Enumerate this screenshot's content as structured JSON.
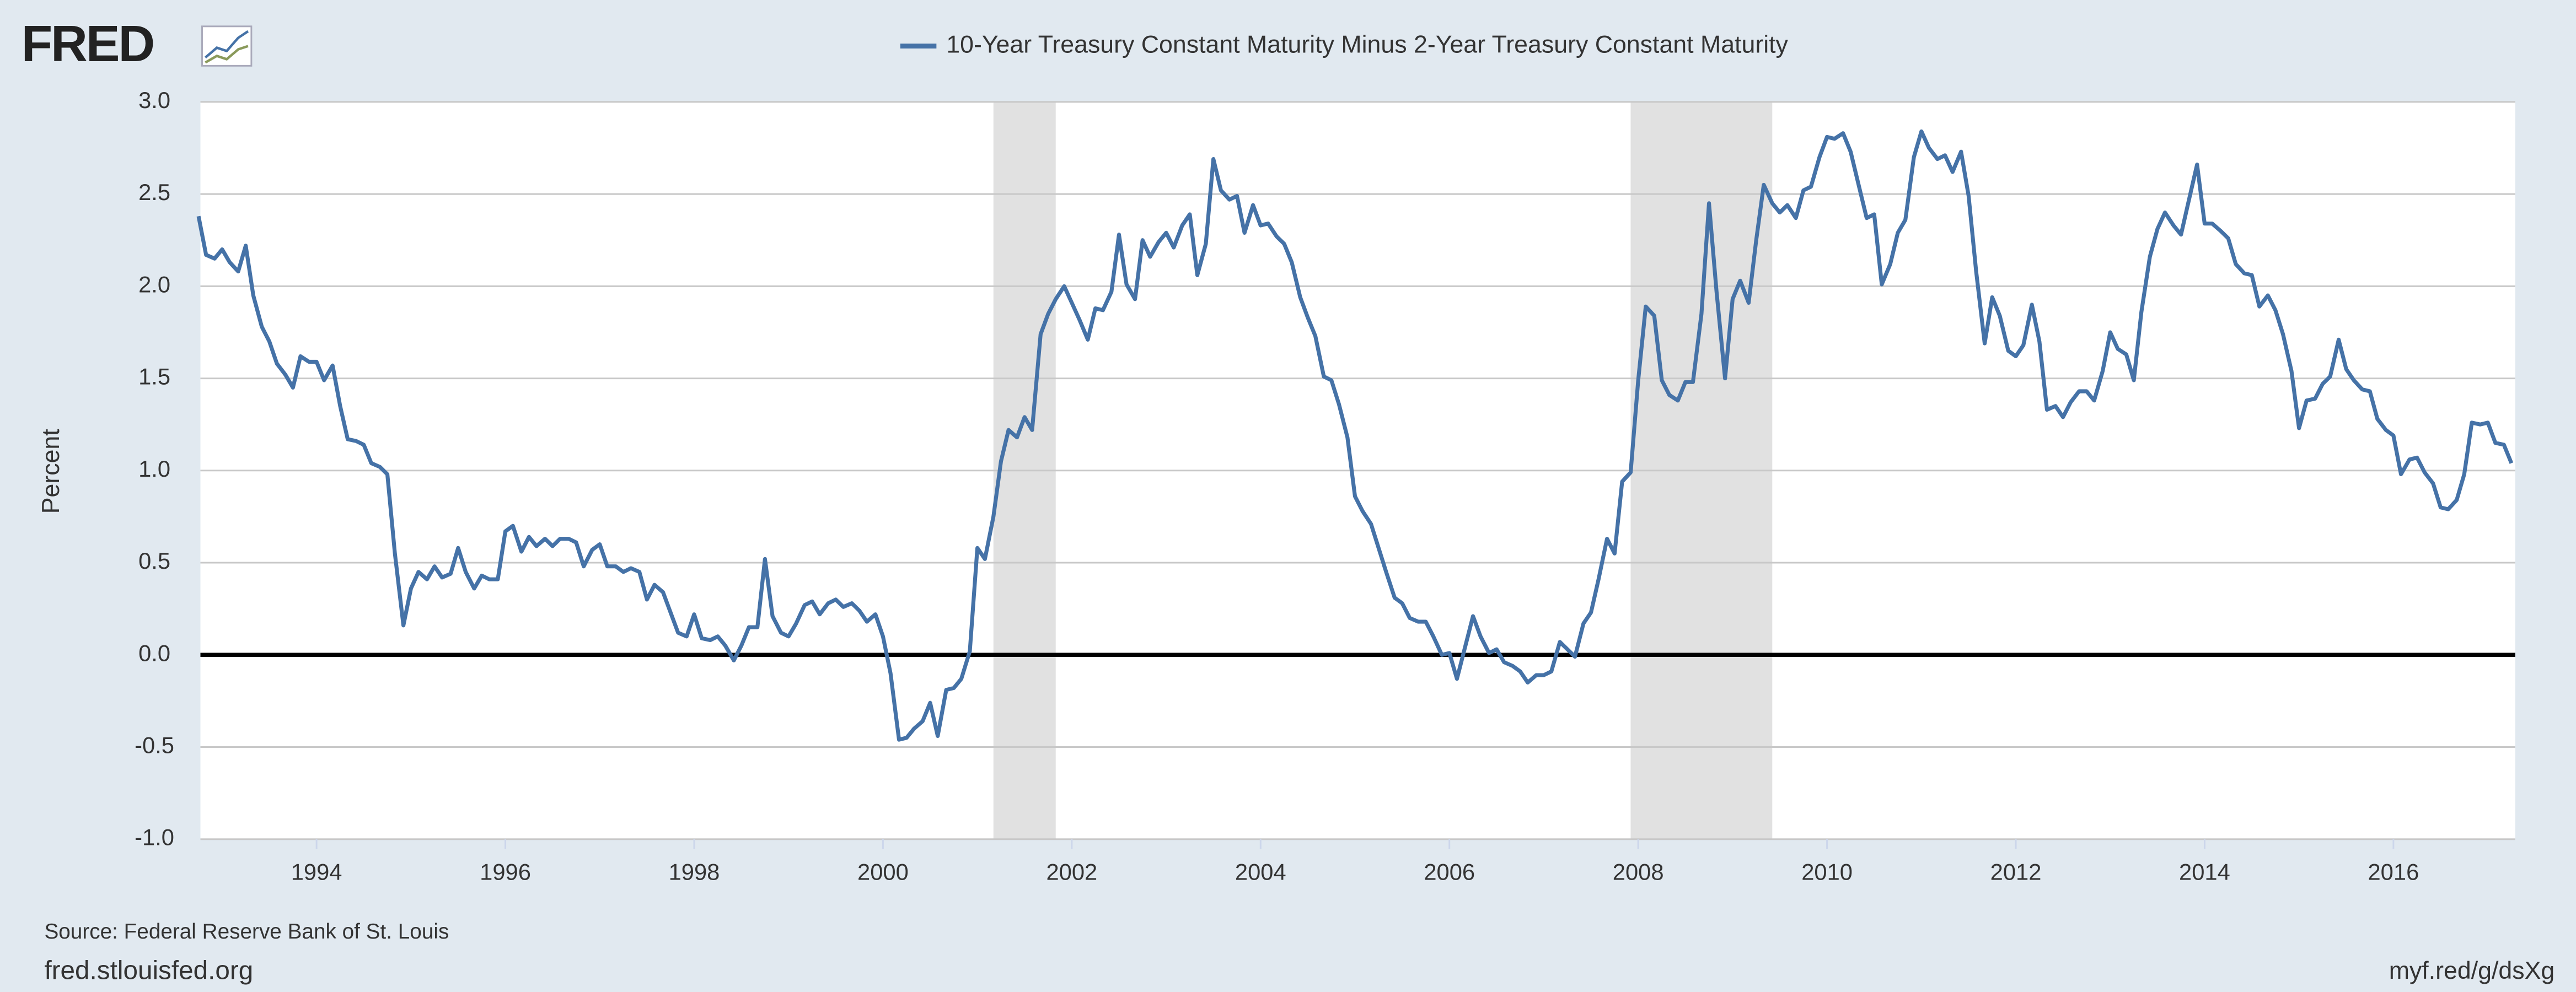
{
  "brand": "FRED",
  "source": "Source: Federal Reserve Bank of St. Louis",
  "site": "fred.stlouisfed.org",
  "short_link": "myf.red/g/dsXg",
  "chart_data": {
    "type": "line",
    "y_label": "Percent",
    "xlim": [
      1992.77,
      2017.29
    ],
    "ylim": [
      -1,
      3
    ],
    "xticks": [
      1994,
      1996,
      1998,
      2000,
      2002,
      2004,
      2006,
      2008,
      2010,
      2012,
      2014,
      2016
    ],
    "yticks": [
      {
        "value": -1,
        "label": "-1.0"
      },
      -0.5,
      {
        "value": 0,
        "label": "0.0"
      },
      0.5,
      {
        "value": 1,
        "label": "1.0"
      },
      1.5,
      {
        "value": 2,
        "label": "2.0"
      },
      2.5,
      {
        "value": 3,
        "label": "3.0"
      }
    ],
    "grid": true,
    "baseline": 0,
    "shaded_ranges": [
      [
        2001.17,
        2001.83
      ],
      [
        2007.92,
        2009.42
      ]
    ],
    "shade_color": "#e1e1e1",
    "x": [
      1992.75,
      1992.83,
      1992.92,
      1993.0,
      1993.08,
      1993.17,
      1993.25,
      1993.33,
      1993.42,
      1993.5,
      1993.58,
      1993.67,
      1993.75,
      1993.83,
      1993.92,
      1994.0,
      1994.08,
      1994.17,
      1994.25,
      1994.33,
      1994.42,
      1994.5,
      1994.58,
      1994.67,
      1994.75,
      1994.83,
      1994.92,
      1995.0,
      1995.08,
      1995.17,
      1995.25,
      1995.33,
      1995.42,
      1995.5,
      1995.58,
      1995.67,
      1995.75,
      1995.83,
      1995.92,
      1996.0,
      1996.08,
      1996.17,
      1996.25,
      1996.33,
      1996.42,
      1996.5,
      1996.58,
      1996.67,
      1996.75,
      1996.83,
      1996.92,
      1997.0,
      1997.08,
      1997.17,
      1997.25,
      1997.33,
      1997.42,
      1997.5,
      1997.58,
      1997.67,
      1997.75,
      1997.83,
      1997.92,
      1998.0,
      1998.08,
      1998.17,
      1998.25,
      1998.33,
      1998.42,
      1998.5,
      1998.58,
      1998.67,
      1998.75,
      1998.83,
      1998.92,
      1999.0,
      1999.08,
      1999.17,
      1999.25,
      1999.33,
      1999.42,
      1999.5,
      1999.58,
      1999.67,
      1999.75,
      1999.83,
      1999.92,
      2000.0,
      2000.08,
      2000.17,
      2000.25,
      2000.33,
      2000.42,
      2000.5,
      2000.58,
      2000.67,
      2000.75,
      2000.83,
      2000.92,
      2001.0,
      2001.08,
      2001.17,
      2001.25,
      2001.33,
      2001.42,
      2001.5,
      2001.58,
      2001.67,
      2001.75,
      2001.83,
      2001.92,
      2002.0,
      2002.08,
      2002.17,
      2002.25,
      2002.33,
      2002.42,
      2002.5,
      2002.58,
      2002.67,
      2002.75,
      2002.83,
      2002.92,
      2003.0,
      2003.08,
      2003.17,
      2003.25,
      2003.33,
      2003.42,
      2003.5,
      2003.58,
      2003.67,
      2003.75,
      2003.83,
      2003.92,
      2004.0,
      2004.08,
      2004.17,
      2004.25,
      2004.33,
      2004.42,
      2004.5,
      2004.58,
      2004.67,
      2004.75,
      2004.83,
      2004.92,
      2005.0,
      2005.08,
      2005.17,
      2005.25,
      2005.33,
      2005.42,
      2005.5,
      2005.58,
      2005.67,
      2005.75,
      2005.83,
      2005.92,
      2006.0,
      2006.08,
      2006.17,
      2006.25,
      2006.33,
      2006.42,
      2006.5,
      2006.58,
      2006.67,
      2006.75,
      2006.83,
      2006.92,
      2007.0,
      2007.08,
      2007.17,
      2007.25,
      2007.33,
      2007.42,
      2007.5,
      2007.58,
      2007.67,
      2007.75,
      2007.83,
      2007.92,
      2008.0,
      2008.08,
      2008.17,
      2008.25,
      2008.33,
      2008.42,
      2008.5,
      2008.58,
      2008.67,
      2008.75,
      2008.83,
      2008.92,
      2009.0,
      2009.08,
      2009.17,
      2009.25,
      2009.33,
      2009.42,
      2009.5,
      2009.58,
      2009.67,
      2009.75,
      2009.83,
      2009.92,
      2010.0,
      2010.08,
      2010.17,
      2010.25,
      2010.33,
      2010.42,
      2010.5,
      2010.58,
      2010.67,
      2010.75,
      2010.83,
      2010.92,
      2011.0,
      2011.08,
      2011.17,
      2011.25,
      2011.33,
      2011.42,
      2011.5,
      2011.58,
      2011.67,
      2011.75,
      2011.83,
      2011.92,
      2012.0,
      2012.08,
      2012.17,
      2012.25,
      2012.33,
      2012.42,
      2012.5,
      2012.58,
      2012.67,
      2012.75,
      2012.83,
      2012.92,
      2013.0,
      2013.08,
      2013.17,
      2013.25,
      2013.33,
      2013.42,
      2013.5,
      2013.58,
      2013.67,
      2013.75,
      2013.83,
      2013.92,
      2014.0,
      2014.08,
      2014.17,
      2014.25,
      2014.33,
      2014.42,
      2014.5,
      2014.58,
      2014.67,
      2014.75,
      2014.83,
      2014.92,
      2015.0,
      2015.08,
      2015.17,
      2015.25,
      2015.33,
      2015.42,
      2015.5,
      2015.58,
      2015.67,
      2015.75,
      2015.83,
      2015.92,
      2016.0,
      2016.08,
      2016.17,
      2016.25,
      2016.33,
      2016.42,
      2016.5,
      2016.58,
      2016.67,
      2016.75,
      2016.83,
      2016.92,
      2017.0,
      2017.08,
      2017.17,
      2017.25
    ],
    "series": [
      {
        "name": "10-Year Treasury Constant Maturity Minus 2-Year Treasury Constant Maturity",
        "color": "#4572a7",
        "values": [
          2.38,
          2.17,
          2.15,
          2.2,
          2.13,
          2.08,
          2.22,
          1.95,
          1.78,
          1.7,
          1.58,
          1.52,
          1.45,
          1.62,
          1.59,
          1.59,
          1.49,
          1.57,
          1.35,
          1.17,
          1.16,
          1.14,
          1.04,
          1.02,
          0.98,
          0.55,
          0.16,
          0.36,
          0.45,
          0.41,
          0.48,
          0.42,
          0.44,
          0.58,
          0.45,
          0.36,
          0.43,
          0.41,
          0.41,
          0.67,
          0.7,
          0.56,
          0.64,
          0.59,
          0.63,
          0.59,
          0.63,
          0.63,
          0.61,
          0.48,
          0.57,
          0.6,
          0.48,
          0.48,
          0.45,
          0.47,
          0.45,
          0.3,
          0.38,
          0.34,
          0.23,
          0.12,
          0.1,
          0.22,
          0.09,
          0.08,
          0.1,
          0.05,
          -0.03,
          0.05,
          0.15,
          0.15,
          0.52,
          0.21,
          0.12,
          0.1,
          0.17,
          0.27,
          0.29,
          0.22,
          0.28,
          0.3,
          0.26,
          0.28,
          0.24,
          0.18,
          0.22,
          0.1,
          -0.1,
          -0.46,
          -0.45,
          -0.4,
          -0.36,
          -0.26,
          -0.44,
          -0.19,
          -0.18,
          -0.13,
          0.02,
          0.58,
          0.52,
          0.75,
          1.05,
          1.22,
          1.18,
          1.29,
          1.22,
          1.74,
          1.85,
          1.93,
          2.0,
          1.91,
          1.82,
          1.71,
          1.88,
          1.87,
          1.97,
          2.28,
          2.01,
          1.93,
          2.25,
          2.16,
          2.24,
          2.29,
          2.21,
          2.33,
          2.39,
          2.06,
          2.23,
          2.69,
          2.52,
          2.47,
          2.49,
          2.29,
          2.44,
          2.33,
          2.34,
          2.27,
          2.23,
          2.13,
          1.94,
          1.83,
          1.73,
          1.51,
          1.49,
          1.36,
          1.18,
          0.86,
          0.78,
          0.71,
          0.58,
          0.45,
          0.31,
          0.28,
          0.2,
          0.18,
          0.18,
          0.1,
          0.0,
          0.01,
          -0.13,
          0.05,
          0.21,
          0.1,
          0.01,
          0.03,
          -0.04,
          -0.06,
          -0.09,
          -0.15,
          -0.11,
          -0.11,
          -0.09,
          0.07,
          0.03,
          -0.01,
          0.17,
          0.23,
          0.41,
          0.63,
          0.55,
          0.94,
          0.99,
          1.49,
          1.89,
          1.84,
          1.49,
          1.41,
          1.38,
          1.48,
          1.48,
          1.85,
          2.45,
          1.97,
          1.5,
          1.93,
          2.03,
          1.91,
          2.25,
          2.55,
          2.45,
          2.4,
          2.44,
          2.37,
          2.52,
          2.54,
          2.7,
          2.81,
          2.8,
          2.83,
          2.73,
          2.56,
          2.37,
          2.39,
          2.01,
          2.12,
          2.29,
          2.36,
          2.7,
          2.84,
          2.75,
          2.69,
          2.71,
          2.62,
          2.73,
          2.49,
          2.08,
          1.69,
          1.94,
          1.84,
          1.65,
          1.62,
          1.68,
          1.9,
          1.7,
          1.33,
          1.35,
          1.29,
          1.37,
          1.43,
          1.43,
          1.38,
          1.54,
          1.75,
          1.66,
          1.63,
          1.49,
          1.86,
          2.16,
          2.31,
          2.4,
          2.33,
          2.28,
          2.46,
          2.66,
          2.34,
          2.34,
          2.3,
          2.26,
          2.12,
          2.07,
          2.06,
          1.89,
          1.95,
          1.87,
          1.74,
          1.54,
          1.23,
          1.38,
          1.39,
          1.47,
          1.51,
          1.71,
          1.55,
          1.49,
          1.44,
          1.43,
          1.28,
          1.22,
          1.19,
          0.98,
          1.06,
          1.07,
          0.99,
          0.93,
          0.8,
          0.79,
          0.84,
          0.98,
          1.26,
          1.25,
          1.26,
          1.15,
          1.14,
          1.04
        ]
      }
    ]
  }
}
